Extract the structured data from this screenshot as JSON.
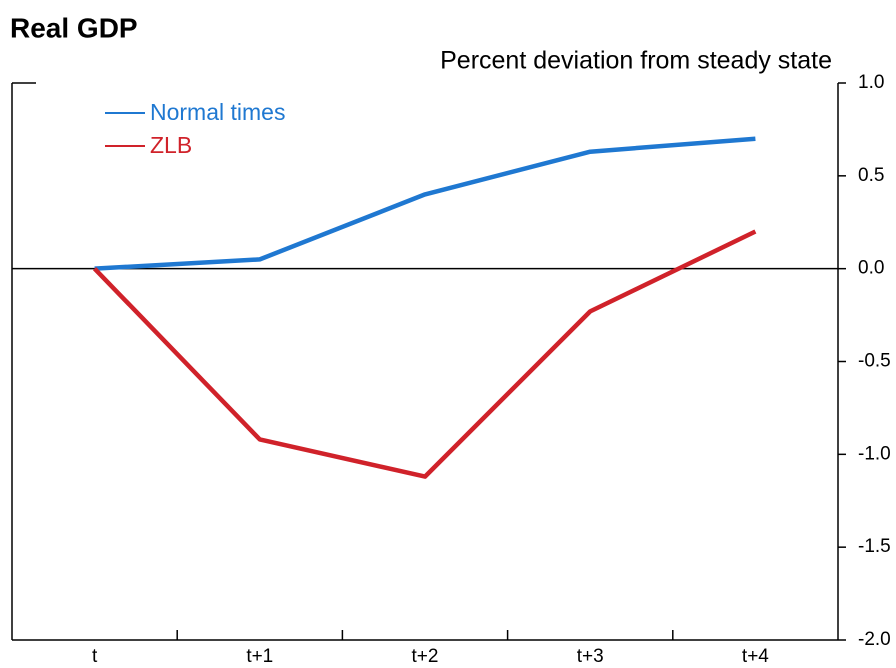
{
  "chart_data": {
    "type": "line",
    "title": "Real GDP",
    "subtitle": "Percent deviation from steady state",
    "categories": [
      "t",
      "t+1",
      "t+2",
      "t+3",
      "t+4"
    ],
    "series": [
      {
        "name": "Normal times",
        "color": "#1f78d1",
        "values": [
          0,
          0.05,
          0.4,
          0.63,
          0.7
        ]
      },
      {
        "name": "ZLB",
        "color": "#d0222a",
        "values": [
          0,
          -0.92,
          -1.12,
          -0.23,
          0.2
        ]
      }
    ],
    "ylim": [
      -2,
      1
    ],
    "yticks": [
      {
        "value": 1,
        "label": "1.0"
      },
      0.5,
      {
        "value": 0,
        "label": "0.0"
      },
      -0.5,
      {
        "value": -1,
        "label": "-1.0"
      },
      -1.5,
      {
        "value": -2,
        "label": "-2.0"
      }
    ],
    "axis_side": "right",
    "legend": "upper left"
  }
}
